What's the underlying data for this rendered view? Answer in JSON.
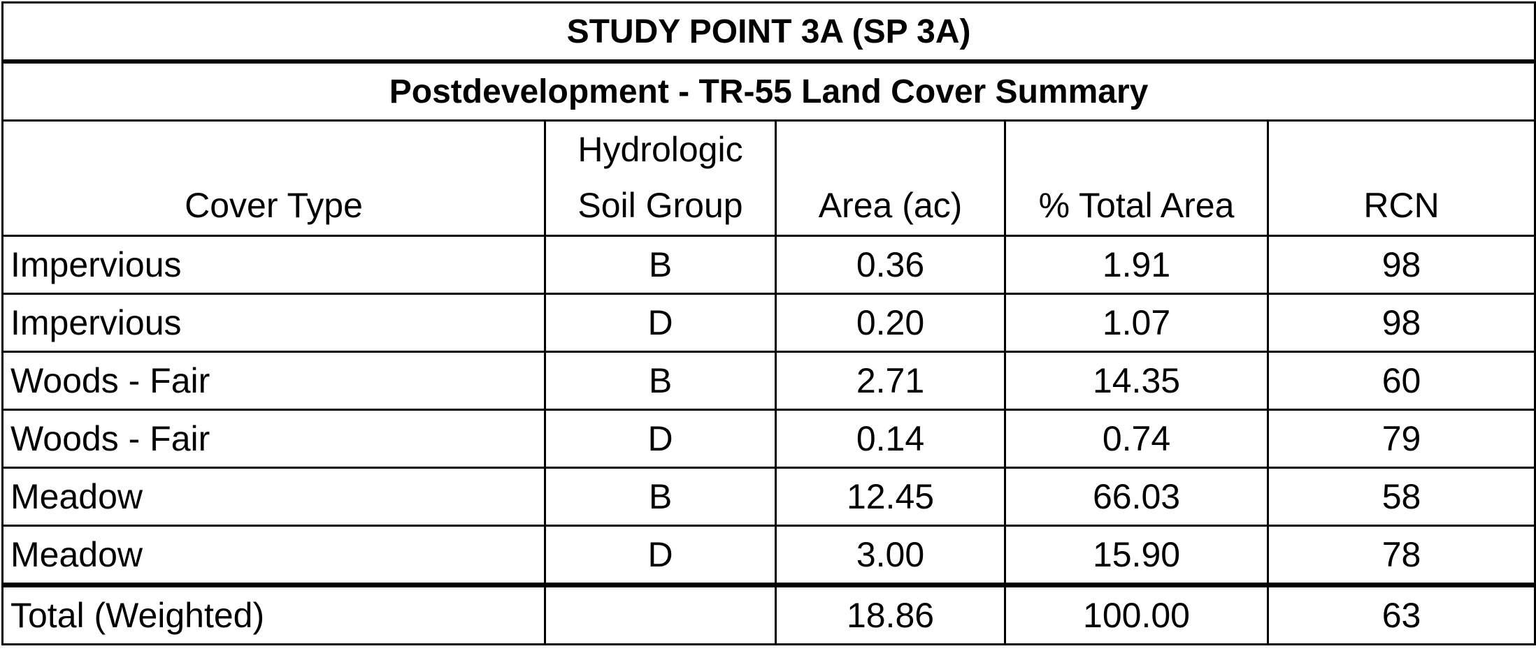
{
  "title": "STUDY POINT 3A (SP 3A)",
  "subtitle": "Postdevelopment - TR-55 Land Cover Summary",
  "columns": {
    "cover_type": "Cover Type",
    "soil_group_line1": "Hydrologic",
    "soil_group_line2": "Soil Group",
    "area": "Area (ac)",
    "pct_total": "% Total Area",
    "rcn": "RCN"
  },
  "rows": [
    {
      "cover_type": "Impervious",
      "soil_group": "B",
      "area": "0.36",
      "pct_total": "1.91",
      "rcn": "98"
    },
    {
      "cover_type": "Impervious",
      "soil_group": "D",
      "area": "0.20",
      "pct_total": "1.07",
      "rcn": "98"
    },
    {
      "cover_type": "Woods - Fair",
      "soil_group": "B",
      "area": "2.71",
      "pct_total": "14.35",
      "rcn": "60"
    },
    {
      "cover_type": "Woods - Fair",
      "soil_group": "D",
      "area": "0.14",
      "pct_total": "0.74",
      "rcn": "79"
    },
    {
      "cover_type": "Meadow",
      "soil_group": "B",
      "area": "12.45",
      "pct_total": "66.03",
      "rcn": "58"
    },
    {
      "cover_type": "Meadow",
      "soil_group": "D",
      "area": "3.00",
      "pct_total": "15.90",
      "rcn": "78"
    }
  ],
  "total": {
    "label": "Total (Weighted)",
    "soil_group": "",
    "area": "18.86",
    "pct_total": "100.00",
    "rcn": "63"
  }
}
